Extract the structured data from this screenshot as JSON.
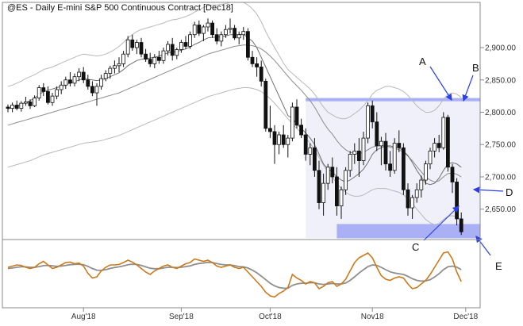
{
  "chart_data": {
    "type": "candlestick",
    "title": "@ES - Daily  E-mini S&P 500 Continuous Contract [Dec18]",
    "ylim": [
      2603,
      2970
    ],
    "y_ticks": [
      "2,650.00",
      "2,700.00",
      "2,750.00",
      "2,800.00",
      "2,850.00",
      "2,900.00"
    ],
    "y_tick_values": [
      2650,
      2700,
      2750,
      2800,
      2850,
      2900
    ],
    "x_month_labels": [
      {
        "label": "Aug'18",
        "index": 17
      },
      {
        "label": "Sep'18",
        "index": 39
      },
      {
        "label": "Oct'18",
        "index": 59
      },
      {
        "label": "Nov18",
        "index": 82
      },
      {
        "label": "Dec'18",
        "index": 103
      }
    ],
    "candles": [
      [
        2808,
        2812,
        2800,
        2806
      ],
      [
        2806,
        2815,
        2800,
        2811
      ],
      [
        2811,
        2818,
        2803,
        2806
      ],
      [
        2806,
        2817,
        2801,
        2814
      ],
      [
        2814,
        2824,
        2810,
        2816
      ],
      [
        2816,
        2820,
        2805,
        2810
      ],
      [
        2810,
        2826,
        2808,
        2822
      ],
      [
        2822,
        2842,
        2818,
        2838
      ],
      [
        2838,
        2845,
        2825,
        2832
      ],
      [
        2832,
        2840,
        2812,
        2815
      ],
      [
        2815,
        2830,
        2810,
        2825
      ],
      [
        2825,
        2840,
        2820,
        2835
      ],
      [
        2835,
        2848,
        2828,
        2842
      ],
      [
        2842,
        2855,
        2836,
        2850
      ],
      [
        2850,
        2862,
        2840,
        2845
      ],
      [
        2845,
        2860,
        2840,
        2855
      ],
      [
        2855,
        2868,
        2848,
        2862
      ],
      [
        2862,
        2870,
        2845,
        2850
      ],
      [
        2850,
        2858,
        2835,
        2840
      ],
      [
        2840,
        2848,
        2825,
        2830
      ],
      [
        2830,
        2845,
        2810,
        2840
      ],
      [
        2840,
        2858,
        2835,
        2852
      ],
      [
        2852,
        2865,
        2848,
        2860
      ],
      [
        2860,
        2872,
        2852,
        2868
      ],
      [
        2868,
        2880,
        2860,
        2872
      ],
      [
        2872,
        2885,
        2862,
        2875
      ],
      [
        2875,
        2895,
        2870,
        2890
      ],
      [
        2890,
        2918,
        2885,
        2912
      ],
      [
        2912,
        2920,
        2895,
        2900
      ],
      [
        2900,
        2912,
        2890,
        2908
      ],
      [
        2908,
        2915,
        2885,
        2890
      ],
      [
        2890,
        2898,
        2878,
        2882
      ],
      [
        2882,
        2892,
        2870,
        2875
      ],
      [
        2875,
        2890,
        2868,
        2885
      ],
      [
        2885,
        2895,
        2875,
        2880
      ],
      [
        2880,
        2900,
        2875,
        2895
      ],
      [
        2895,
        2910,
        2888,
        2905
      ],
      [
        2905,
        2915,
        2880,
        2888
      ],
      [
        2888,
        2900,
        2882,
        2897
      ],
      [
        2897,
        2912,
        2892,
        2908
      ],
      [
        2908,
        2918,
        2898,
        2902
      ],
      [
        2902,
        2925,
        2898,
        2920
      ],
      [
        2920,
        2940,
        2915,
        2935
      ],
      [
        2935,
        2942,
        2918,
        2922
      ],
      [
        2922,
        2935,
        2910,
        2932
      ],
      [
        2932,
        2945,
        2925,
        2938
      ],
      [
        2938,
        2942,
        2915,
        2920
      ],
      [
        2920,
        2930,
        2905,
        2910
      ],
      [
        2910,
        2925,
        2902,
        2920
      ],
      [
        2920,
        2935,
        2915,
        2928
      ],
      [
        2928,
        2945,
        2922,
        2930
      ],
      [
        2930,
        2935,
        2912,
        2915
      ],
      [
        2915,
        2925,
        2905,
        2920
      ],
      [
        2920,
        2932,
        2912,
        2925
      ],
      [
        2925,
        2930,
        2880,
        2885
      ],
      [
        2885,
        2895,
        2870,
        2875
      ],
      [
        2875,
        2885,
        2855,
        2870
      ],
      [
        2870,
        2880,
        2840,
        2848
      ],
      [
        2848,
        2852,
        2770,
        2775
      ],
      [
        2775,
        2810,
        2760,
        2770
      ],
      [
        2770,
        2780,
        2720,
        2750
      ],
      [
        2750,
        2770,
        2735,
        2765
      ],
      [
        2765,
        2780,
        2745,
        2750
      ],
      [
        2750,
        2765,
        2730,
        2760
      ],
      [
        2760,
        2815,
        2755,
        2808
      ],
      [
        2808,
        2820,
        2775,
        2780
      ],
      [
        2780,
        2790,
        2760,
        2765
      ],
      [
        2765,
        2775,
        2725,
        2735
      ],
      [
        2735,
        2752,
        2718,
        2745
      ],
      [
        2745,
        2760,
        2700,
        2710
      ],
      [
        2710,
        2725,
        2650,
        2660
      ],
      [
        2660,
        2705,
        2640,
        2690
      ],
      [
        2690,
        2720,
        2680,
        2715
      ],
      [
        2715,
        2730,
        2690,
        2700
      ],
      [
        2700,
        2715,
        2640,
        2655
      ],
      [
        2655,
        2685,
        2635,
        2680
      ],
      [
        2680,
        2715,
        2672,
        2710
      ],
      [
        2710,
        2740,
        2700,
        2735
      ],
      [
        2735,
        2752,
        2720,
        2740
      ],
      [
        2740,
        2760,
        2700,
        2725
      ],
      [
        2725,
        2770,
        2718,
        2760
      ],
      [
        2760,
        2815,
        2752,
        2810
      ],
      [
        2810,
        2818,
        2775,
        2785
      ],
      [
        2785,
        2800,
        2740,
        2748
      ],
      [
        2748,
        2762,
        2718,
        2755
      ],
      [
        2755,
        2768,
        2710,
        2720
      ],
      [
        2720,
        2740,
        2700,
        2710
      ],
      [
        2710,
        2760,
        2705,
        2752
      ],
      [
        2752,
        2772,
        2738,
        2745
      ],
      [
        2745,
        2752,
        2672,
        2680
      ],
      [
        2680,
        2690,
        2640,
        2652
      ],
      [
        2652,
        2672,
        2635,
        2668
      ],
      [
        2668,
        2690,
        2660,
        2680
      ],
      [
        2680,
        2702,
        2668,
        2695
      ],
      [
        2695,
        2725,
        2688,
        2720
      ],
      [
        2720,
        2745,
        2712,
        2740
      ],
      [
        2740,
        2760,
        2730,
        2752
      ],
      [
        2752,
        2765,
        2738,
        2745
      ],
      [
        2745,
        2800,
        2742,
        2792
      ],
      [
        2792,
        2796,
        2708,
        2715
      ],
      [
        2715,
        2720,
        2675,
        2692
      ],
      [
        2692,
        2698,
        2625,
        2635
      ],
      [
        2635,
        2645,
        2610,
        2615
      ]
    ],
    "ma_fast": [
      2805,
      2808,
      2810,
      2812,
      2815,
      2818,
      2822,
      2827,
      2832,
      2834,
      2836,
      2838,
      2840,
      2842,
      2845,
      2847,
      2850,
      2852,
      2851,
      2850,
      2849,
      2850,
      2852,
      2855,
      2858,
      2861,
      2866,
      2872,
      2876,
      2880,
      2882,
      2883,
      2884,
      2885,
      2887,
      2889,
      2892,
      2893,
      2894,
      2896,
      2898,
      2901,
      2905,
      2908,
      2912,
      2915,
      2916,
      2916,
      2917,
      2918,
      2920,
      2920,
      2920,
      2921,
      2915,
      2910,
      2900,
      2885,
      2870,
      2855,
      2840,
      2825,
      2810,
      2795,
      2790,
      2782,
      2775,
      2768,
      2760,
      2750,
      2735,
      2720,
      2712,
      2708,
      2700,
      2695,
      2692,
      2695,
      2700,
      2705,
      2712,
      2722,
      2735,
      2742,
      2745,
      2748,
      2748,
      2746,
      2745,
      2740,
      2733,
      2722,
      2710,
      2700,
      2690,
      2688,
      2690,
      2698,
      2710,
      2720,
      2722,
      2720,
      2715
    ],
    "ma_slow": [
      2780,
      2782,
      2784,
      2786,
      2788,
      2790,
      2792,
      2794,
      2796,
      2798,
      2800,
      2802,
      2804,
      2806,
      2808,
      2810,
      2812,
      2814,
      2816,
      2818,
      2820,
      2822,
      2824,
      2826,
      2828,
      2830,
      2833,
      2836,
      2839,
      2842,
      2845,
      2848,
      2851,
      2854,
      2857,
      2860,
      2863,
      2866,
      2869,
      2872,
      2875,
      2878,
      2881,
      2884,
      2887,
      2890,
      2892,
      2894,
      2896,
      2898,
      2900,
      2902,
      2903,
      2904,
      2904,
      2903,
      2901,
      2898,
      2893,
      2887,
      2880,
      2872,
      2864,
      2856,
      2848,
      2841,
      2834,
      2826,
      2818,
      2808,
      2796,
      2784,
      2774,
      2766,
      2756,
      2748,
      2742,
      2738,
      2736,
      2736,
      2738,
      2742,
      2746,
      2748,
      2748,
      2748,
      2746,
      2744,
      2742,
      2738,
      2732,
      2725,
      2716,
      2708,
      2700,
      2695,
      2692,
      2694,
      2700,
      2705,
      2706,
      2704,
      2700
    ],
    "band_upper": [
      2840,
      2842,
      2845,
      2848,
      2852,
      2855,
      2858,
      2862,
      2866,
      2868,
      2870,
      2873,
      2876,
      2879,
      2882,
      2885,
      2888,
      2890,
      2889,
      2888,
      2887,
      2888,
      2890,
      2893,
      2897,
      2902,
      2908,
      2915,
      2920,
      2925,
      2928,
      2930,
      2932,
      2934,
      2936,
      2938,
      2941,
      2943,
      2944,
      2946,
      2948,
      2951,
      2955,
      2958,
      2962,
      2965,
      2966,
      2966,
      2967,
      2968,
      2970,
      2970,
      2970,
      2970,
      2966,
      2960,
      2952,
      2940,
      2925,
      2912,
      2900,
      2888,
      2876,
      2866,
      2860,
      2854,
      2848,
      2842,
      2836,
      2828,
      2818,
      2808,
      2800,
      2796,
      2792,
      2790,
      2790,
      2793,
      2798,
      2803,
      2810,
      2818,
      2828,
      2834,
      2837,
      2840,
      2840,
      2838,
      2836,
      2832,
      2826,
      2818,
      2810,
      2804,
      2800,
      2800,
      2803,
      2810,
      2820,
      2828,
      2830,
      2828,
      2823
    ],
    "band_lower": [
      2715,
      2717,
      2719,
      2721,
      2723,
      2725,
      2728,
      2731,
      2734,
      2736,
      2738,
      2740,
      2742,
      2744,
      2746,
      2748,
      2750,
      2752,
      2753,
      2754,
      2755,
      2756,
      2758,
      2760,
      2762,
      2764,
      2767,
      2770,
      2773,
      2776,
      2779,
      2782,
      2785,
      2788,
      2791,
      2794,
      2797,
      2800,
      2803,
      2806,
      2809,
      2812,
      2815,
      2818,
      2821,
      2824,
      2826,
      2828,
      2830,
      2832,
      2834,
      2836,
      2837,
      2838,
      2838,
      2837,
      2835,
      2832,
      2827,
      2821,
      2814,
      2806,
      2798,
      2790,
      2782,
      2775,
      2768,
      2760,
      2752,
      2742,
      2730,
      2718,
      2708,
      2700,
      2690,
      2682,
      2676,
      2672,
      2670,
      2670,
      2672,
      2676,
      2680,
      2682,
      2682,
      2682,
      2680,
      2678,
      2676,
      2672,
      2666,
      2659,
      2650,
      2642,
      2634,
      2629,
      2626,
      2628,
      2634,
      2639,
      2640,
      2638,
      2634
    ],
    "osc_fast": [
      0.1,
      0.15,
      0.2,
      0.18,
      0.1,
      0.05,
      0.1,
      0.25,
      0.35,
      0.2,
      0.05,
      0.1,
      0.2,
      0.3,
      0.32,
      0.25,
      0.28,
      0.15,
      -0.15,
      -0.35,
      -0.3,
      -0.05,
      0.1,
      0.2,
      0.2,
      0.22,
      0.3,
      0.4,
      0.32,
      0.2,
      0.05,
      -0.1,
      -0.2,
      -0.05,
      0.05,
      0.15,
      0.2,
      0.1,
      0.05,
      0.15,
      0.25,
      0.3,
      0.45,
      0.4,
      0.35,
      0.4,
      0.3,
      0.15,
      0.1,
      0.15,
      0.2,
      0.1,
      0.05,
      0.1,
      -0.1,
      -0.3,
      -0.5,
      -0.7,
      -0.95,
      -1.1,
      -1.15,
      -1.0,
      -0.9,
      -0.75,
      -0.2,
      -0.35,
      -0.45,
      -0.6,
      -0.5,
      -0.55,
      -0.8,
      -0.7,
      -0.55,
      -0.5,
      -0.7,
      -0.6,
      -0.4,
      -0.05,
      0.3,
      0.5,
      0.6,
      0.7,
      0.5,
      0.1,
      -0.25,
      -0.4,
      -0.45,
      -0.35,
      -0.3,
      -0.35,
      -0.6,
      -0.8,
      -0.75,
      -0.6,
      -0.45,
      -0.2,
      0.1,
      0.4,
      0.7,
      0.75,
      0.45,
      -0.1,
      -0.5
    ],
    "osc_slow": [
      0.05,
      0.07,
      0.1,
      0.12,
      0.12,
      0.1,
      0.1,
      0.13,
      0.17,
      0.18,
      0.16,
      0.14,
      0.15,
      0.18,
      0.21,
      0.22,
      0.23,
      0.21,
      0.14,
      0.05,
      -0.02,
      -0.03,
      0.0,
      0.05,
      0.09,
      0.12,
      0.16,
      0.21,
      0.23,
      0.22,
      0.18,
      0.12,
      0.06,
      0.04,
      0.04,
      0.07,
      0.1,
      0.1,
      0.09,
      0.1,
      0.13,
      0.16,
      0.22,
      0.26,
      0.28,
      0.31,
      0.3,
      0.26,
      0.22,
      0.2,
      0.2,
      0.17,
      0.13,
      0.12,
      0.07,
      -0.02,
      -0.13,
      -0.27,
      -0.42,
      -0.57,
      -0.68,
      -0.75,
      -0.78,
      -0.78,
      -0.66,
      -0.6,
      -0.57,
      -0.57,
      -0.55,
      -0.55,
      -0.6,
      -0.62,
      -0.6,
      -0.58,
      -0.6,
      -0.6,
      -0.56,
      -0.45,
      -0.3,
      -0.14,
      0.0,
      0.13,
      0.2,
      0.18,
      0.1,
      0.0,
      -0.09,
      -0.14,
      -0.17,
      -0.2,
      -0.28,
      -0.38,
      -0.45,
      -0.48,
      -0.47,
      -0.42,
      -0.31,
      -0.17,
      0.0,
      0.12,
      0.15,
      0.11,
      0.0
    ]
  },
  "annotations": {
    "A": "A",
    "B": "B",
    "C": "C",
    "D": "D",
    "E": "E"
  },
  "colors": {
    "candle": "#111111",
    "band": "#b8b8b8",
    "ma": "#8c8c8c",
    "range_fill": "#f0f0fb",
    "range_border": "#b0b0f0",
    "range_bar": "#aab0f5",
    "arrow": "#2b3fe8",
    "osc_fast": "#c97a1c",
    "osc_slow": "#8f8f8f",
    "frame": "#888888"
  }
}
